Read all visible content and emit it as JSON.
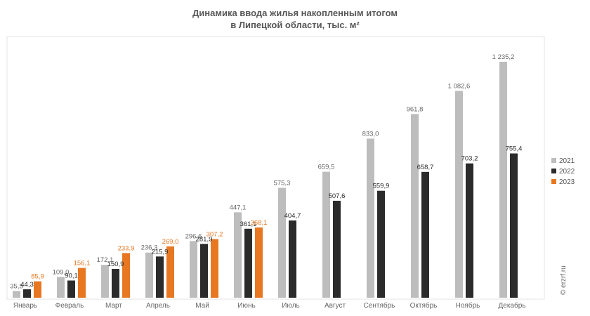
{
  "chart_data": {
    "type": "bar",
    "title_line1": "Динамика ввода жилья накопленным итогом",
    "title_line2": "в Липецкой области, тыс. м²",
    "categories": [
      "Январь",
      "Февраль",
      "Март",
      "Апрель",
      "Май",
      "Июнь",
      "Июль",
      "Август",
      "Сентябрь",
      "Октябрь",
      "Ноябрь",
      "Декабрь"
    ],
    "series": [
      {
        "name": "2021",
        "color": "#bdbdbd",
        "values": [
          35.5,
          109.0,
          172.1,
          236.3,
          296.6,
          447.1,
          575.3,
          659.5,
          833.0,
          961.8,
          1082.6,
          1235.2
        ],
        "labels": [
          "35,5",
          "109,0",
          "172,1",
          "236,3",
          "296,6",
          "447,1",
          "575,3",
          "659,5",
          "833,0",
          "961,8",
          "1 082,6",
          "1 235,2"
        ]
      },
      {
        "name": "2022",
        "color": "#2b2b2b",
        "values": [
          44.3,
          90.1,
          150.9,
          215.9,
          281.9,
          361.1,
          404.7,
          507.6,
          559.9,
          658.7,
          703.2,
          755.4
        ],
        "labels": [
          "44,3",
          "90,1",
          "150,9",
          "215,9",
          "281,9",
          "361,1",
          "404,7",
          "507,6",
          "559,9",
          "658,7",
          "703,2",
          "755,4"
        ]
      },
      {
        "name": "2023",
        "color": "#e87722",
        "values": [
          85.9,
          156.1,
          233.9,
          269.0,
          307.2,
          368.1,
          null,
          null,
          null,
          null,
          null,
          null
        ],
        "labels": [
          "85,9",
          "156,1",
          "233,9",
          "269,0",
          "307,2",
          "368,1",
          "",
          "",
          "",
          "",
          "",
          ""
        ]
      }
    ],
    "ylim": [
      0,
      1300
    ],
    "legend": "right",
    "watermark": "© erzrf.ru"
  }
}
